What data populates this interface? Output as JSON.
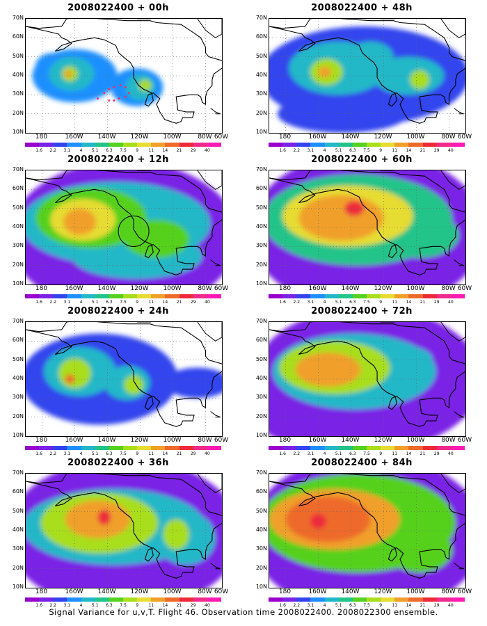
{
  "panels": [
    {
      "title": "2008022400 + 00h",
      "col": 0,
      "row": 0,
      "level": 0,
      "circle": false,
      "track": true
    },
    {
      "title": "2008022400 + 48h",
      "col": 1,
      "row": 0,
      "level": 4,
      "circle": false,
      "track": false
    },
    {
      "title": "2008022400 + 12h",
      "col": 0,
      "row": 1,
      "level": 1,
      "circle": true,
      "track": false
    },
    {
      "title": "2008022400 + 60h",
      "col": 1,
      "row": 1,
      "level": 5,
      "circle": false,
      "track": false
    },
    {
      "title": "2008022400 + 24h",
      "col": 0,
      "row": 2,
      "level": 2,
      "circle": false,
      "track": false
    },
    {
      "title": "2008022400 + 72h",
      "col": 1,
      "row": 2,
      "level": 6,
      "circle": false,
      "track": false
    },
    {
      "title": "2008022400 + 36h",
      "col": 0,
      "row": 3,
      "level": 3,
      "circle": false,
      "track": false
    },
    {
      "title": "2008022400 + 84h",
      "col": 1,
      "row": 3,
      "level": 7,
      "circle": false,
      "track": false
    }
  ],
  "lat_labels": [
    "70N",
    "60N",
    "50N",
    "40N",
    "30N",
    "20N",
    "10N"
  ],
  "lon_labels": [
    "180",
    "160W",
    "140W",
    "120W",
    "100W",
    "80W",
    "60W"
  ],
  "colorbar": {
    "labels": [
      "1.6",
      "2.2",
      "3.1",
      "4",
      "5.1",
      "6.3",
      "7.5",
      "9",
      "11",
      "14",
      "21",
      "29",
      "40"
    ],
    "colors": [
      "#9900cc",
      "#7a22e6",
      "#3344ee",
      "#1f8fff",
      "#22b8c8",
      "#22c48a",
      "#55d11f",
      "#a8de1a",
      "#e6dc32",
      "#f0a02a",
      "#ee6a2a",
      "#ee2a3a",
      "#ee2a8a",
      "#ff1ab4"
    ]
  },
  "footer": "Signal Variance for u,v,T. Flight 46. Observation time 2008022400. 2008022300 ensemble."
}
